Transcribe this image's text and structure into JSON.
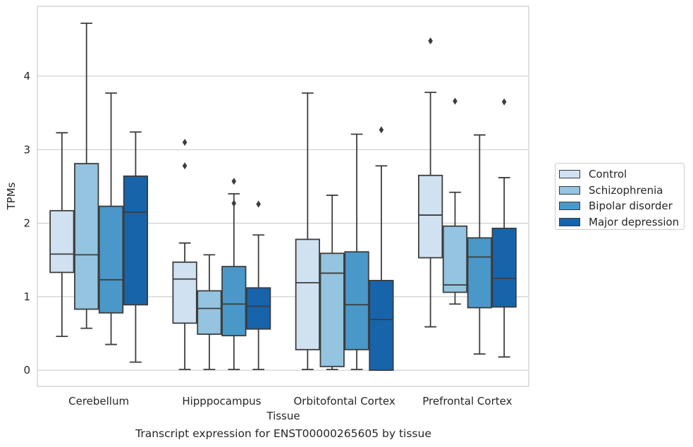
{
  "chart_data": {
    "type": "boxplot",
    "xlabel": "Tissue",
    "ylabel": "TPMs",
    "categories": [
      "Cerebellum",
      "Hipppocampus",
      "Orbitofontal Cortex",
      "Prefrontal Cortex"
    ],
    "ylim": [
      -0.22,
      4.95
    ],
    "yticks": [
      0,
      1,
      2,
      3,
      4
    ],
    "grid": "horizontal",
    "legend_position": "right",
    "series": [
      {
        "name": "Control",
        "color": "#d0e1f2",
        "boxes": [
          {
            "q1": 1.33,
            "median": 1.58,
            "q3": 2.17,
            "whislo": 0.46,
            "whishi": 3.23,
            "fliers": []
          },
          {
            "q1": 0.64,
            "median": 1.24,
            "q3": 1.47,
            "whislo": 0.01,
            "whishi": 1.73,
            "fliers": [
              2.78,
              3.1
            ]
          },
          {
            "q1": 0.28,
            "median": 1.19,
            "q3": 1.78,
            "whislo": 0.01,
            "whishi": 3.77,
            "fliers": []
          },
          {
            "q1": 1.53,
            "median": 2.11,
            "q3": 2.65,
            "whislo": 0.59,
            "whishi": 3.78,
            "fliers": [
              4.48
            ]
          }
        ]
      },
      {
        "name": "Schizophrenia",
        "color": "#94c4df",
        "boxes": [
          {
            "q1": 0.83,
            "median": 1.57,
            "q3": 2.81,
            "whislo": 0.57,
            "whishi": 4.72,
            "fliers": []
          },
          {
            "q1": 0.49,
            "median": 0.84,
            "q3": 1.08,
            "whislo": 0.01,
            "whishi": 1.57,
            "fliers": []
          },
          {
            "q1": 0.05,
            "median": 1.32,
            "q3": 1.59,
            "whislo": 0.01,
            "whishi": 2.38,
            "fliers": []
          },
          {
            "q1": 1.06,
            "median": 1.16,
            "q3": 1.96,
            "whislo": 0.9,
            "whishi": 2.42,
            "fliers": [
              3.66
            ]
          }
        ]
      },
      {
        "name": "Bipolar disorder",
        "color": "#4a98c9",
        "boxes": [
          {
            "q1": 0.78,
            "median": 1.23,
            "q3": 2.23,
            "whislo": 0.35,
            "whishi": 3.77,
            "fliers": []
          },
          {
            "q1": 0.47,
            "median": 0.9,
            "q3": 1.41,
            "whislo": 0.01,
            "whishi": 2.4,
            "fliers": [
              2.27,
              2.57
            ]
          },
          {
            "q1": 0.28,
            "median": 0.89,
            "q3": 1.61,
            "whislo": 0.01,
            "whishi": 3.21,
            "fliers": []
          },
          {
            "q1": 0.85,
            "median": 1.54,
            "q3": 1.8,
            "whislo": 0.22,
            "whishi": 3.2,
            "fliers": []
          }
        ]
      },
      {
        "name": "Major depression",
        "color": "#1764ab",
        "boxes": [
          {
            "q1": 0.89,
            "median": 2.15,
            "q3": 2.64,
            "whislo": 0.11,
            "whishi": 3.24,
            "fliers": []
          },
          {
            "q1": 0.56,
            "median": 0.87,
            "q3": 1.12,
            "whislo": 0.01,
            "whishi": 1.84,
            "fliers": [
              2.26
            ]
          },
          {
            "q1": 0.0,
            "median": 0.69,
            "q3": 1.22,
            "whislo": 0.0,
            "whishi": 2.78,
            "fliers": [
              3.27
            ]
          },
          {
            "q1": 0.86,
            "median": 1.25,
            "q3": 1.93,
            "whislo": 0.18,
            "whishi": 2.62,
            "fliers": [
              3.65
            ]
          }
        ]
      }
    ],
    "caption": "Transcript expression for ENST00000265605 by tissue"
  }
}
